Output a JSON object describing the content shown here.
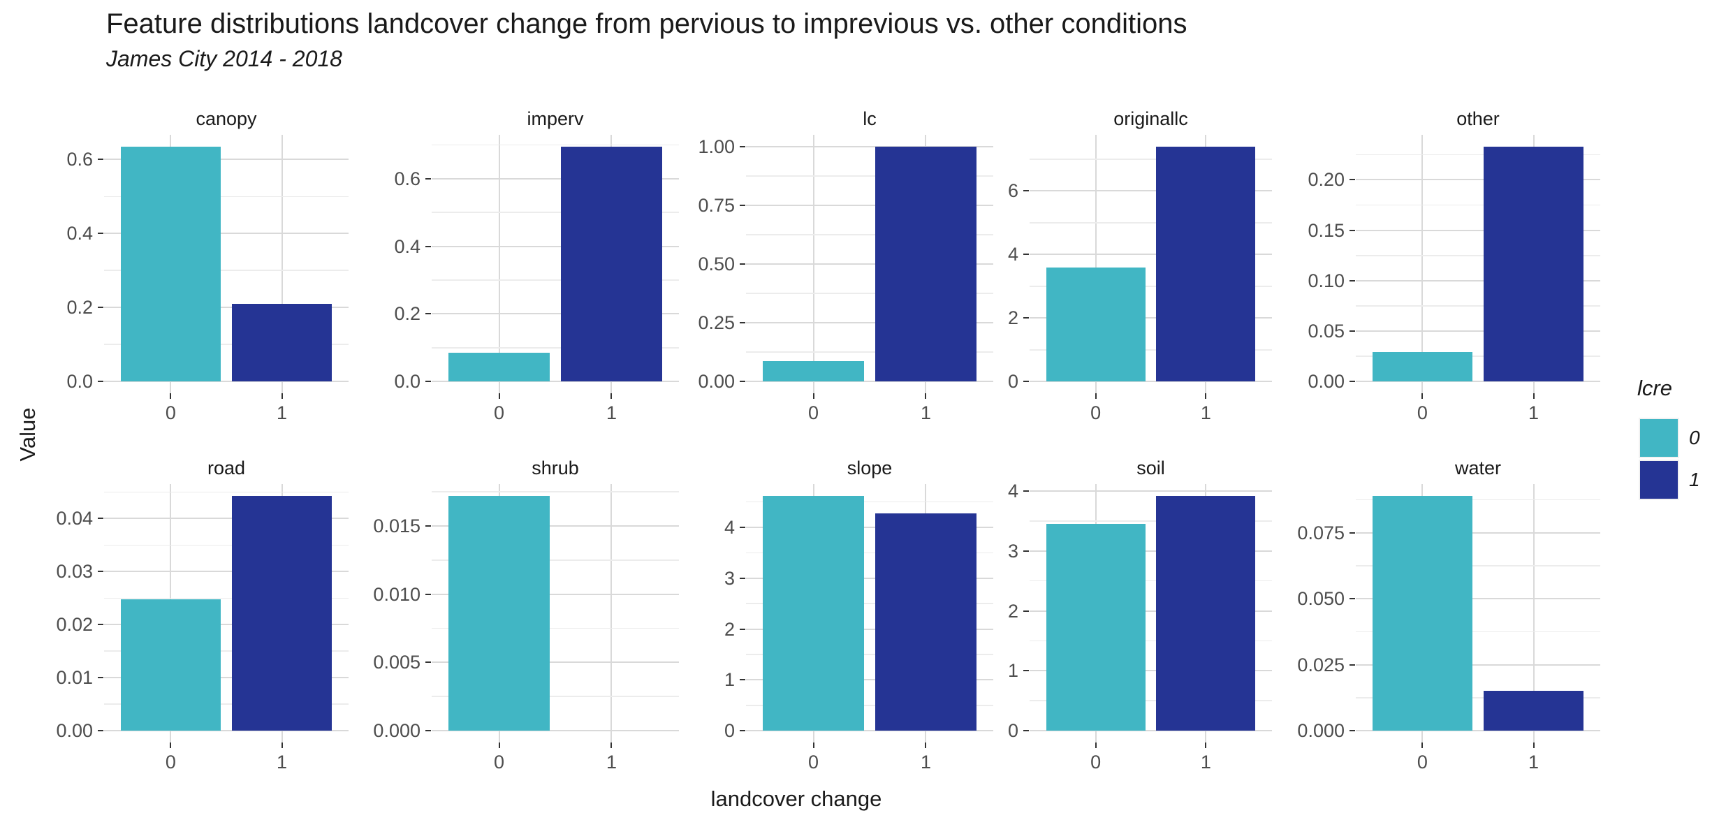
{
  "title": "Feature distributions landcover change from pervious to imprevious vs. other conditions",
  "subtitle": "James City 2014 - 2018",
  "x_axis_label": "landcover change",
  "y_axis_label": "Value",
  "legend": {
    "title": "lcre",
    "entries": [
      {
        "label": "0",
        "color": "#41b6c4"
      },
      {
        "label": "1",
        "color": "#253494"
      }
    ]
  },
  "colors": {
    "bar_group_0": "#41b6c4",
    "bar_group_1": "#253494",
    "grid_major": "#d9d9d9",
    "grid_minor": "#ececec",
    "tick_text": "#4d4d4d",
    "text": "#1a1a1a"
  },
  "chart_data": {
    "type": "bar",
    "title": "Feature distributions landcover change from pervious to imprevious vs. other conditions",
    "subtitle": "James City 2014 - 2018",
    "xlabel": "landcover change",
    "ylabel": "Value",
    "legend_title": "lcre",
    "legend_position": "right",
    "grid": true,
    "categories": [
      "0",
      "1"
    ],
    "series_names": [
      "lcre 0",
      "lcre 1"
    ],
    "facets": [
      {
        "name": "canopy",
        "values": [
          0.635,
          0.21
        ],
        "ticks": [
          0,
          0.2,
          0.4,
          0.6
        ],
        "tick_labels": [
          "0.0",
          "0.2",
          "0.4",
          "0.6"
        ]
      },
      {
        "name": "imperv",
        "values": [
          0.085,
          0.695
        ],
        "ticks": [
          0,
          0.2,
          0.4,
          0.6
        ],
        "tick_labels": [
          "0.0",
          "0.2",
          "0.4",
          "0.6"
        ]
      },
      {
        "name": "lc",
        "values": [
          0.086,
          1.0
        ],
        "ticks": [
          0,
          0.25,
          0.5,
          0.75,
          1.0
        ],
        "tick_labels": [
          "0.00",
          "0.25",
          "0.50",
          "0.75",
          "1.00"
        ]
      },
      {
        "name": "originallc",
        "values": [
          3.6,
          7.4
        ],
        "ticks": [
          0,
          2,
          4,
          6
        ],
        "tick_labels": [
          "0",
          "2",
          "4",
          "6"
        ]
      },
      {
        "name": "other",
        "values": [
          0.029,
          0.233
        ],
        "ticks": [
          0,
          0.05,
          0.1,
          0.15,
          0.2
        ],
        "tick_labels": [
          "0.00",
          "0.05",
          "0.10",
          "0.15",
          "0.20"
        ]
      },
      {
        "name": "road",
        "values": [
          0.0248,
          0.0443
        ],
        "ticks": [
          0,
          0.01,
          0.02,
          0.03,
          0.04
        ],
        "tick_labels": [
          "0.00",
          "0.01",
          "0.02",
          "0.03",
          "0.04"
        ]
      },
      {
        "name": "shrub",
        "values": [
          0.0172,
          0
        ],
        "ticks": [
          0,
          0.005,
          0.01,
          0.015
        ],
        "tick_labels": [
          "0.000",
          "0.005",
          "0.010",
          "0.015"
        ]
      },
      {
        "name": "slope",
        "values": [
          4.62,
          4.28
        ],
        "ticks": [
          0,
          1,
          2,
          3,
          4
        ],
        "tick_labels": [
          "0",
          "1",
          "2",
          "3",
          "4"
        ]
      },
      {
        "name": "soil",
        "values": [
          3.45,
          3.92
        ],
        "ticks": [
          0,
          1,
          2,
          3,
          4
        ],
        "tick_labels": [
          "0",
          "1",
          "2",
          "3",
          "4"
        ]
      },
      {
        "name": "water",
        "values": [
          0.089,
          0.015
        ],
        "ticks": [
          0,
          0.025,
          0.05,
          0.075
        ],
        "tick_labels": [
          "0.000",
          "0.025",
          "0.050",
          "0.075"
        ]
      }
    ]
  }
}
